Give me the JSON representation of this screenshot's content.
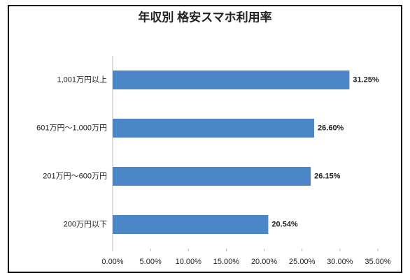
{
  "chart_data": {
    "type": "bar",
    "orientation": "horizontal",
    "title": "年収別 格安スマホ利用率",
    "categories": [
      "1,001万円以上",
      "601万円～1,000万円",
      "201万円～600万円",
      "200万円以下"
    ],
    "values": [
      31.25,
      26.6,
      26.15,
      20.54
    ],
    "value_labels": [
      "31.25%",
      "26.60%",
      "26.15%",
      "20.54%"
    ],
    "color": "#4a86c8",
    "xlim": [
      0,
      35
    ],
    "xticks": [
      {
        "value": 0,
        "label": "0.00%"
      },
      {
        "value": 5,
        "label": "5.00%"
      },
      {
        "value": 10,
        "label": "10.00%"
      },
      {
        "value": 15,
        "label": "15.00%"
      },
      {
        "value": 20,
        "label": "20.00%"
      },
      {
        "value": 25,
        "label": "25.00%"
      },
      {
        "value": 30,
        "label": "30.00%"
      },
      {
        "value": 35,
        "label": "35.00%"
      }
    ],
    "grid": false
  }
}
